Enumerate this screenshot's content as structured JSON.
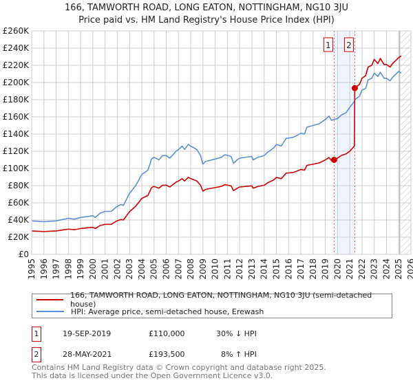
{
  "chart_data": {
    "type": "line",
    "title": "166, TAMWORTH ROAD, LONG EATON, NOTTINGHAM, NG10 3JU",
    "subtitle": "Price paid vs. HM Land Registry's House Price Index (HPI)",
    "xlim": [
      1995,
      2026
    ],
    "ylim": [
      0,
      260000
    ],
    "x_ticks": [
      "1995",
      "1996",
      "1997",
      "1998",
      "1999",
      "2000",
      "2001",
      "2002",
      "2003",
      "2004",
      "2005",
      "2006",
      "2007",
      "2008",
      "2009",
      "2010",
      "2011",
      "2012",
      "2013",
      "2014",
      "2015",
      "2016",
      "2017",
      "2018",
      "2019",
      "2020",
      "2021",
      "2022",
      "2023",
      "2024",
      "2025",
      "2026"
    ],
    "y_ticks": [
      {
        "v": 0,
        "label": "£0"
      },
      {
        "v": 20000,
        "label": "£20K"
      },
      {
        "v": 40000,
        "label": "£40K"
      },
      {
        "v": 60000,
        "label": "£60K"
      },
      {
        "v": 80000,
        "label": "£80K"
      },
      {
        "v": 100000,
        "label": "£100K"
      },
      {
        "v": 120000,
        "label": "£120K"
      },
      {
        "v": 140000,
        "label": "£140K"
      },
      {
        "v": 160000,
        "label": "£160K"
      },
      {
        "v": 180000,
        "label": "£180K"
      },
      {
        "v": 200000,
        "label": "£200K"
      },
      {
        "v": 220000,
        "label": "£220K"
      },
      {
        "v": 240000,
        "label": "£240K"
      },
      {
        "v": 260000,
        "label": "£260K"
      }
    ],
    "grid": true,
    "x": [
      1995,
      1996,
      1997,
      1998,
      1998.5,
      1999,
      2000,
      2000.2,
      2000.6,
      2001,
      2001.5,
      2002,
      2002.3,
      2002.5,
      2003,
      2003.5,
      2004,
      2004.5,
      2004.8,
      2005,
      2005.4,
      2005.7,
      2006,
      2006.3,
      2006.8,
      2007,
      2007.3,
      2007.5,
      2007.8,
      2008,
      2008.5,
      2008.8,
      2009,
      2009.2,
      2010,
      2010.5,
      2010.8,
      2011.3,
      2011.5,
      2011.8,
      2012,
      2013,
      2013.1,
      2013.5,
      2014,
      2014.3,
      2014.8,
      2015,
      2015.4,
      2015.8,
      2016.3,
      2016.5,
      2017,
      2017.3,
      2017.5,
      2018,
      2018.5,
      2019,
      2019.3,
      2019.5,
      2019.72,
      2020,
      2020.3,
      2020.7,
      2021,
      2021.38,
      2021.41,
      2021.8,
      2022,
      2022.3,
      2022.5,
      2022.8,
      2023,
      2023.3,
      2023.5,
      2023.8,
      2024,
      2024.3,
      2024.5,
      2025,
      2025.2
    ],
    "series": [
      {
        "name": "166, TAMWORTH ROAD, LONG EATON, NOTTINGHAM, NG10 3JU (semi-detached house)",
        "color": "#cc0000",
        "values": [
          27300,
          26600,
          27300,
          29400,
          28700,
          30100,
          31500,
          30100,
          33600,
          35000,
          35000,
          39200,
          40600,
          40000,
          49700,
          56000,
          65100,
          68600,
          77700,
          79100,
          77000,
          80500,
          80500,
          78400,
          84000,
          85400,
          88200,
          85400,
          89600,
          88200,
          85400,
          80500,
          73500,
          75600,
          77700,
          79100,
          81200,
          79800,
          74200,
          77000,
          78400,
          79800,
          77000,
          79100,
          80500,
          83300,
          86800,
          89600,
          88200,
          94500,
          95200,
          95900,
          98700,
          98000,
          103600,
          105000,
          106400,
          109900,
          112700,
          109200,
          110000,
          112000,
          115000,
          117000,
          120000,
          126000,
          193500,
          197800,
          205000,
          208000,
          218000,
          220000,
          227000,
          222000,
          228000,
          221000,
          221000,
          218000,
          222000,
          229000,
          231000
        ]
      },
      {
        "name": "HPI: Average price, semi-detached house, Erewash",
        "color": "#5b8fd4",
        "values": [
          39000,
          38000,
          39000,
          42000,
          41000,
          43000,
          45000,
          43000,
          48000,
          50000,
          50000,
          56000,
          58000,
          57000,
          71000,
          80000,
          93000,
          98000,
          111000,
          113000,
          110000,
          115000,
          115000,
          112000,
          120000,
          122000,
          126000,
          122000,
          128000,
          126000,
          122000,
          115000,
          105000,
          108000,
          111000,
          113000,
          116000,
          114000,
          106000,
          110000,
          112000,
          114000,
          110000,
          113000,
          115000,
          119000,
          124000,
          128000,
          126000,
          135000,
          136000,
          137000,
          141000,
          140000,
          148000,
          150000,
          152000,
          157000,
          161000,
          156000,
          157000,
          158000,
          162000,
          165000,
          171000,
          178000,
          180000,
          184000,
          191000,
          193000,
          203000,
          205000,
          211000,
          207000,
          212000,
          205000,
          205000,
          202000,
          206000,
          213000,
          211000
        ]
      }
    ],
    "sales": [
      {
        "id": "1",
        "date": "19-SEP-2019",
        "x": 2019.72,
        "price": 110000,
        "price_label": "£110,000",
        "hpi": "30% ↓ HPI"
      },
      {
        "id": "2",
        "date": "28-MAY-2021",
        "x": 2021.41,
        "price": 193500,
        "price_label": "£193,500",
        "hpi": "8% ↑ HPI"
      }
    ],
    "forecast_from": 2025.2,
    "legend_placement": "below"
  },
  "footer": {
    "line1": "Contains HM Land Registry data © Crown copyright and database right 2025.",
    "line2": "This data is licensed under the Open Government Licence v3.0."
  }
}
